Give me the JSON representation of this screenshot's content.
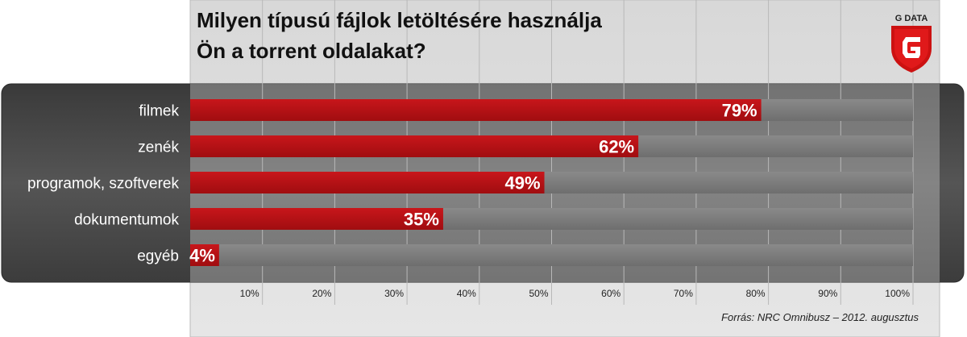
{
  "title": {
    "line1": "Milyen típusú fájlok letöltésére használja",
    "line2": "Ön a torrent oldalakat?"
  },
  "logo": {
    "text": "G DATA",
    "icon": "g-data-shield-logo",
    "color": "#cc1111"
  },
  "source": "Forrás: NRC Omnibusz – 2012. augusztus",
  "colors": {
    "bar": "#b80f13",
    "track": "#7a7a7a",
    "panel": "#4a4a4a"
  },
  "chart_data": {
    "type": "bar",
    "orientation": "horizontal",
    "categories": [
      "filmek",
      "zenék",
      "programok, szoftverek",
      "dokumentumok",
      "egyéb"
    ],
    "values": [
      79,
      62,
      49,
      35,
      4
    ],
    "value_labels": [
      "79%",
      "62%",
      "49%",
      "35%",
      "4%"
    ],
    "xlim": [
      0,
      100
    ],
    "x_ticks": [
      "10%",
      "20%",
      "30%",
      "40%",
      "50%",
      "60%",
      "70%",
      "80%",
      "90%",
      "100%"
    ],
    "x_tick_values": [
      10,
      20,
      30,
      40,
      50,
      60,
      70,
      80,
      90,
      100
    ],
    "grid": true
  }
}
